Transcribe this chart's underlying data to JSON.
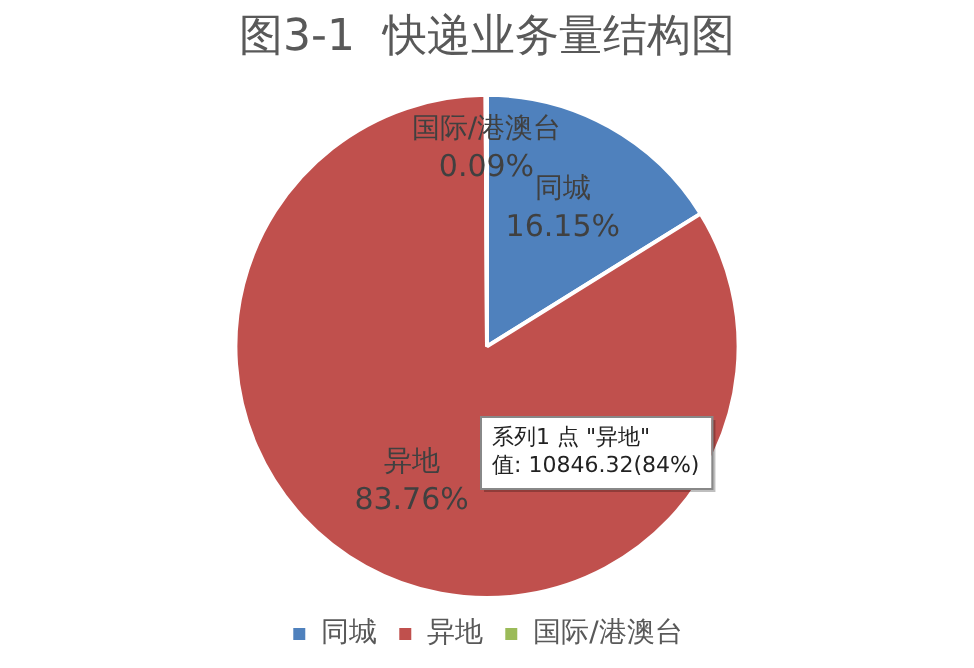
{
  "chart_data": {
    "type": "pie",
    "title": "图3-1  快递业务量结构图",
    "categories": [
      "同城",
      "异地",
      "国际/港澳台"
    ],
    "values": [
      16.15,
      83.76,
      0.09
    ],
    "colors": [
      "#4f81bd",
      "#c0504d",
      "#9bbb59"
    ],
    "value_labels": [
      "16.15%",
      "83.76%",
      "0.09%"
    ],
    "legend": "bottom",
    "annotations": [
      "系列1 点 \"异地\"\n值: 10846.32(84%)"
    ]
  }
}
